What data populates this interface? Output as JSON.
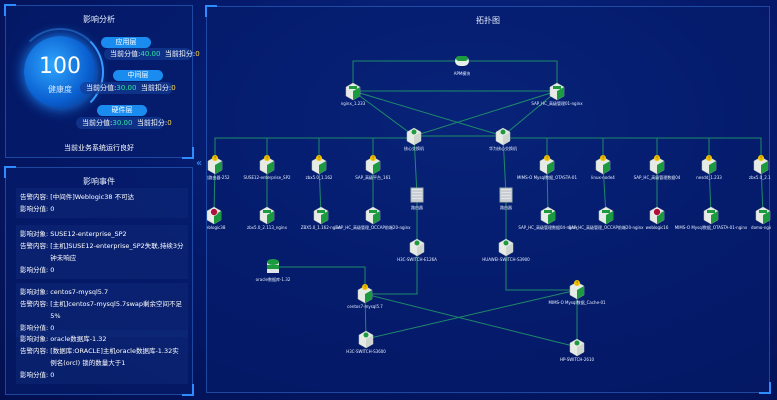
{
  "analysis": {
    "title": "影响分析",
    "score": "100",
    "score_label": "健康度",
    "layers": [
      {
        "name": "应用层",
        "score_label": "当前分值:",
        "score": "40.00",
        "deduct_label": "当前扣分:",
        "deduct": "0"
      },
      {
        "name": "中间层",
        "score_label": "当前分值:",
        "score": "30.00",
        "deduct_label": "当前扣分:",
        "deduct": "0"
      },
      {
        "name": "硬件层",
        "score_label": "当前分值:",
        "score": "30.00",
        "deduct_label": "当前扣分:",
        "deduct": "0"
      }
    ],
    "status": "当前业务系统运行良好"
  },
  "events": {
    "title": "影响事件",
    "items": [
      {
        "rows": [
          [
            "告警内容:",
            "[中间件]Weblogic38 不可达"
          ],
          [
            "影响分值:",
            "0"
          ]
        ]
      },
      {
        "rows": [
          [
            "影响对象:",
            "SUSE12-enterprise_SP2"
          ],
          [
            "告警内容:",
            "[主机]SUSE12-enterprise_SP2失联,持续3分钟未响应"
          ],
          [
            "影响分值:",
            "0"
          ]
        ]
      },
      {
        "rows": [
          [
            "影响对象:",
            "centos7-mysql5.7"
          ],
          [
            "告警内容:",
            "[主机]centos7-mysql5.7swap剩余空间不足5%"
          ],
          [
            "影响分值:",
            "0"
          ]
        ]
      },
      {
        "rows": [
          [
            "影响对象:",
            "oracle数据库-1.32"
          ],
          [
            "告警内容:",
            "[数据库:ORACLE]主机oracle数据库-1.32实例名(orcl) 锁的数量大于1"
          ],
          [
            "影响分值:",
            "0"
          ]
        ]
      }
    ]
  },
  "topology": {
    "title": "拓扑图",
    "line_color": "#1f8a6a",
    "nodes": [
      {
        "id": "apm",
        "label": "APM模块",
        "type": "apm"
      },
      {
        "id": "ng",
        "label": "nginx_1.233",
        "type": "app"
      },
      {
        "id": "sapng",
        "label": "SAP_HC_高级管理01-nginx",
        "type": "app"
      },
      {
        "id": "c1",
        "label": "核心交换机",
        "type": "switch"
      },
      {
        "id": "c2",
        "label": "华为核心交换机",
        "type": "switch"
      },
      {
        "id": "a1",
        "label": "智能路由器-252",
        "type": "host-warn"
      },
      {
        "id": "a2",
        "label": "SUSE12-enterprise_SP2",
        "type": "host-warn"
      },
      {
        "id": "a3",
        "label": "zbx5.0_1.162",
        "type": "host-warn"
      },
      {
        "id": "a4",
        "label": "SAP_高级平台_161",
        "type": "host-warn"
      },
      {
        "id": "a5",
        "label": "MIMS-O Mysql数据_OTASTA-01",
        "type": "host-warn"
      },
      {
        "id": "a6",
        "label": "linux-node4",
        "type": "host-warn"
      },
      {
        "id": "a7",
        "label": "SAP_HC_高级管理数据04",
        "type": "host-warn"
      },
      {
        "id": "a8",
        "label": "nesdd_1.233",
        "type": "host-warn"
      },
      {
        "id": "a9",
        "label": "zbx5.0_2.11",
        "type": "host-warn"
      },
      {
        "id": "b1",
        "label": "weblogic38",
        "type": "weblogic"
      },
      {
        "id": "b2",
        "label": "zbx5.0_2.113_nginx",
        "type": "app"
      },
      {
        "id": "b3",
        "label": "ZBX5.0_1.162-nginx",
        "type": "app"
      },
      {
        "id": "b4",
        "label": "SAP_HC_高级管理_OCCAP前端20-nginx",
        "type": "app"
      },
      {
        "id": "r1",
        "label": "路由器",
        "type": "router"
      },
      {
        "id": "r2",
        "label": "路由器",
        "type": "router"
      },
      {
        "id": "b5",
        "label": "SAP_HC_高级管理数据04-nginx",
        "type": "app"
      },
      {
        "id": "b6",
        "label": "SAP_HC_高级管理_OCCAP前端20-nginx",
        "type": "app"
      },
      {
        "id": "b7",
        "label": "weblogic16",
        "type": "weblogic"
      },
      {
        "id": "b8",
        "label": "MIMS-O Mysql数据_OTASTA-01-nginx",
        "type": "app"
      },
      {
        "id": "b9",
        "label": "domo-nginx",
        "type": "app"
      },
      {
        "id": "s1",
        "label": "H3C-SWITCH-E126A",
        "type": "switch"
      },
      {
        "id": "s2",
        "label": "HUAWEI-SWITCH-S3900",
        "type": "switch"
      },
      {
        "id": "ora",
        "label": "oracle数据库-1.32",
        "type": "db"
      },
      {
        "id": "cen",
        "label": "centos7-mysql5.7",
        "type": "host-warn"
      },
      {
        "id": "cache",
        "label": "MIMS-O Mysql数据_Cache-01",
        "type": "host-warn"
      },
      {
        "id": "s3",
        "label": "H3C-SWITCH-S3600",
        "type": "switch"
      },
      {
        "id": "hp",
        "label": "HP-SWITCH-2610",
        "type": "switch"
      }
    ],
    "edges": [
      [
        "apm",
        "ng"
      ],
      [
        "apm",
        "sapng"
      ],
      [
        "ng",
        "sapng"
      ],
      [
        "ng",
        "c1"
      ],
      [
        "ng",
        "c2"
      ],
      [
        "sapng",
        "c1"
      ],
      [
        "sapng",
        "c2"
      ],
      [
        "c1",
        "c2"
      ],
      [
        "c1",
        "a1"
      ],
      [
        "c1",
        "a2"
      ],
      [
        "c1",
        "a3"
      ],
      [
        "c1",
        "a4"
      ],
      [
        "c2",
        "a5"
      ],
      [
        "c2",
        "a6"
      ],
      [
        "c2",
        "a7"
      ],
      [
        "c2",
        "a8"
      ],
      [
        "c2",
        "a9"
      ],
      [
        "a1",
        "b1"
      ],
      [
        "a2",
        "b2"
      ],
      [
        "a3",
        "b3"
      ],
      [
        "a4",
        "b4"
      ],
      [
        "a5",
        "b5"
      ],
      [
        "a6",
        "b6"
      ],
      [
        "a7",
        "b7"
      ],
      [
        "a8",
        "b8"
      ],
      [
        "a9",
        "b9"
      ],
      [
        "c1",
        "r1"
      ],
      [
        "r1",
        "s1"
      ],
      [
        "c2",
        "r2"
      ],
      [
        "r2",
        "s2"
      ],
      [
        "ora",
        "cen"
      ],
      [
        "cen",
        "s1"
      ],
      [
        "s2",
        "cache"
      ],
      [
        "cen",
        "s3"
      ],
      [
        "cen",
        "hp"
      ],
      [
        "cache",
        "s3"
      ],
      [
        "cache",
        "hp"
      ]
    ]
  }
}
